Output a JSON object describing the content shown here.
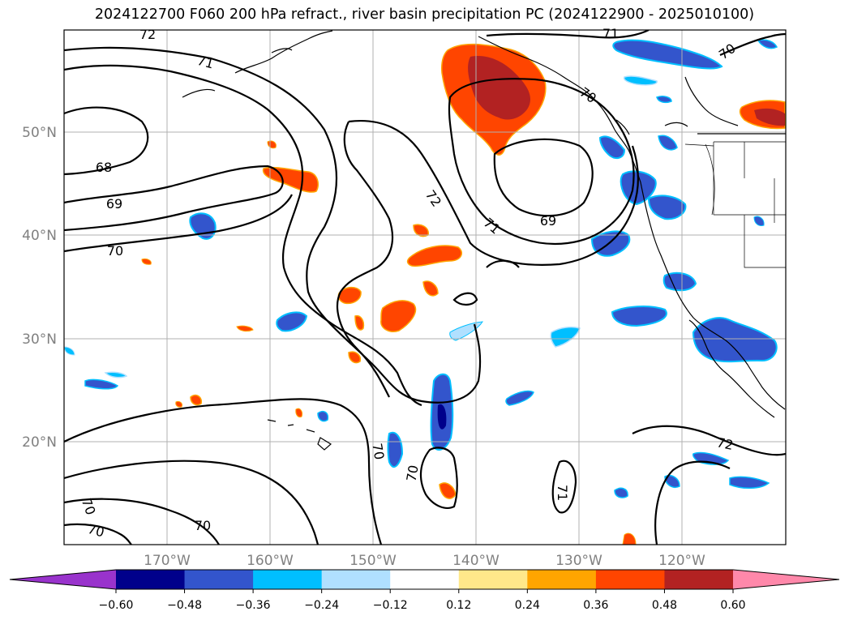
{
  "title": "2024122700 F060 200 hPa refract., river basin precipitation PC (2024122900 - 2025010100)",
  "lat_labels": [
    "50°N",
    "40°N",
    "30°N",
    "20°N"
  ],
  "lon_labels": [
    "170°W",
    "160°W",
    "150°W",
    "140°W",
    "130°W",
    "120°W"
  ],
  "contour_labels": [
    "72",
    "71",
    "68",
    "69",
    "70",
    "72",
    "71",
    "69",
    "70",
    "70",
    "70",
    "71",
    "70",
    "70",
    "72",
    "70",
    "71"
  ],
  "colorbar": {
    "ticks": [
      "−0.60",
      "−0.48",
      "−0.36",
      "−0.24",
      "−0.12",
      "0.12",
      "0.24",
      "0.36",
      "0.48",
      "0.60"
    ],
    "colors": [
      "#9933cc",
      "#00008b",
      "#3355cc",
      "#00bfff",
      "#b0e0ff",
      "#ffffff",
      "#ffe88a",
      "#ffa500",
      "#ff4500",
      "#b22222",
      "#ff88aa"
    ]
  },
  "colors": {
    "contour": "#000000",
    "coast": "#000000",
    "grid": "#b0b0b0"
  }
}
